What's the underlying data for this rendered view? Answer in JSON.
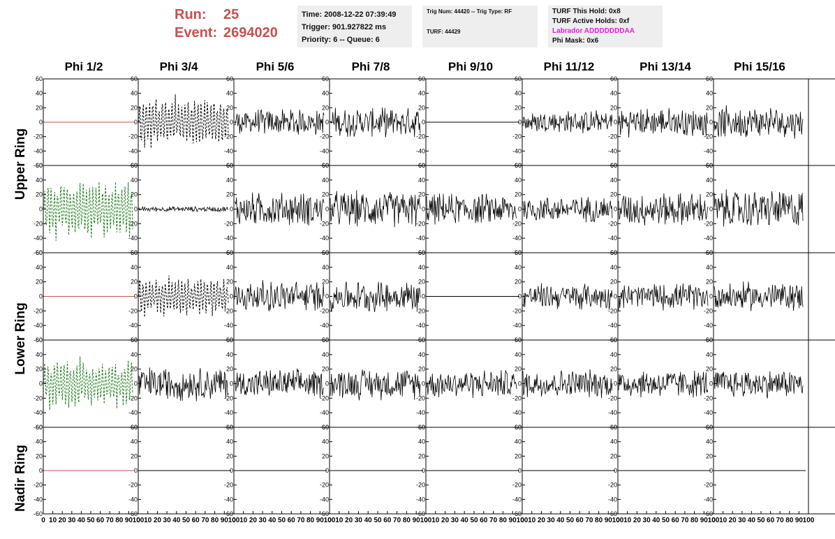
{
  "header": {
    "run_label": "Run:",
    "run_value": "25",
    "event_label": "Event:",
    "event_value": "2694020"
  },
  "info_box_1": {
    "time": "Time: 2008-12-22 07:39:49",
    "trigger": "Trigger: 901.927822 ms",
    "priority": "Priority: 6 -- Queue: 6"
  },
  "info_box_2": {
    "trig": "Trig Num: 44420 -- Trig Type: RF",
    "turf": "TURF: 44429"
  },
  "info_box_3": {
    "hold": "TURF This Hold: 0x8",
    "active": "TURF Active Holds: 0xf",
    "labrador": "Labrador ADDDDDDDAA",
    "phi_mask": "Phi Mask: 0x6"
  },
  "columns": [
    "Phi 1/2",
    "Phi 3/4",
    "Phi 5/6",
    "Phi 7/8",
    "Phi 9/10",
    "Phi 11/12",
    "Phi 13/14",
    "Phi 15/16"
  ],
  "row_groups": [
    {
      "label": "Upper Ring"
    },
    {
      "label": "Lower Ring"
    },
    {
      "label": "Nadir Ring"
    }
  ],
  "colors": {
    "flat_red": "#c8504f",
    "green_dashed": "#1f7a1f",
    "black": "#000000",
    "run_text": "#c8504f",
    "labrador_text": "#e020e0"
  },
  "chart_data": {
    "type": "line",
    "xlim": [
      0,
      100
    ],
    "ylim": [
      -60,
      60
    ],
    "y_ticks": [
      -60,
      -40,
      -20,
      0,
      20,
      40,
      60
    ],
    "x_ticks": [
      0,
      10,
      20,
      30,
      40,
      50,
      60,
      70,
      80,
      90,
      100
    ],
    "panels": [
      {
        "row": 0,
        "col": 0,
        "style": "flat-red"
      },
      {
        "row": 0,
        "col": 1,
        "style": "dashed-black",
        "amplitude": 40
      },
      {
        "row": 0,
        "col": 2,
        "style": "noise",
        "amplitude": 20
      },
      {
        "row": 0,
        "col": 3,
        "style": "noise",
        "amplitude": 22
      },
      {
        "row": 0,
        "col": 4,
        "style": "flat-black"
      },
      {
        "row": 0,
        "col": 5,
        "style": "noise",
        "amplitude": 18
      },
      {
        "row": 0,
        "col": 6,
        "style": "noise",
        "amplitude": 22
      },
      {
        "row": 0,
        "col": 7,
        "style": "noise",
        "amplitude": 24
      },
      {
        "row": 1,
        "col": 0,
        "style": "dashed-green",
        "amplitude": 45
      },
      {
        "row": 1,
        "col": 1,
        "style": "noise",
        "amplitude": 4
      },
      {
        "row": 1,
        "col": 2,
        "style": "noise",
        "amplitude": 26
      },
      {
        "row": 1,
        "col": 3,
        "style": "noise",
        "amplitude": 28
      },
      {
        "row": 1,
        "col": 4,
        "style": "noise",
        "amplitude": 24
      },
      {
        "row": 1,
        "col": 5,
        "style": "noise",
        "amplitude": 20
      },
      {
        "row": 1,
        "col": 6,
        "style": "noise",
        "amplitude": 26
      },
      {
        "row": 1,
        "col": 7,
        "style": "noise",
        "amplitude": 30
      },
      {
        "row": 2,
        "col": 0,
        "style": "flat-red"
      },
      {
        "row": 2,
        "col": 1,
        "style": "dashed-black",
        "amplitude": 30
      },
      {
        "row": 2,
        "col": 2,
        "style": "noise",
        "amplitude": 24
      },
      {
        "row": 2,
        "col": 3,
        "style": "noise",
        "amplitude": 24
      },
      {
        "row": 2,
        "col": 4,
        "style": "flat-black"
      },
      {
        "row": 2,
        "col": 5,
        "style": "noise",
        "amplitude": 20
      },
      {
        "row": 2,
        "col": 6,
        "style": "noise",
        "amplitude": 20
      },
      {
        "row": 2,
        "col": 7,
        "style": "noise",
        "amplitude": 22
      },
      {
        "row": 3,
        "col": 0,
        "style": "dashed-green",
        "amplitude": 38
      },
      {
        "row": 3,
        "col": 1,
        "style": "noise",
        "amplitude": 26
      },
      {
        "row": 3,
        "col": 2,
        "style": "noise",
        "amplitude": 22
      },
      {
        "row": 3,
        "col": 3,
        "style": "noise",
        "amplitude": 24
      },
      {
        "row": 3,
        "col": 4,
        "style": "noise",
        "amplitude": 22
      },
      {
        "row": 3,
        "col": 5,
        "style": "noise",
        "amplitude": 22
      },
      {
        "row": 3,
        "col": 6,
        "style": "noise",
        "amplitude": 22
      },
      {
        "row": 3,
        "col": 7,
        "style": "noise",
        "amplitude": 22
      },
      {
        "row": 4,
        "col": 0,
        "style": "flat-red"
      },
      {
        "row": 4,
        "col": 1,
        "style": "flat-black"
      },
      {
        "row": 4,
        "col": 2,
        "style": "flat-black"
      },
      {
        "row": 4,
        "col": 3,
        "style": "flat-black"
      },
      {
        "row": 4,
        "col": 4,
        "style": "flat-black"
      },
      {
        "row": 4,
        "col": 5,
        "style": "flat-black"
      },
      {
        "row": 4,
        "col": 6,
        "style": "flat-black"
      },
      {
        "row": 4,
        "col": 7,
        "style": "flat-black"
      }
    ]
  }
}
